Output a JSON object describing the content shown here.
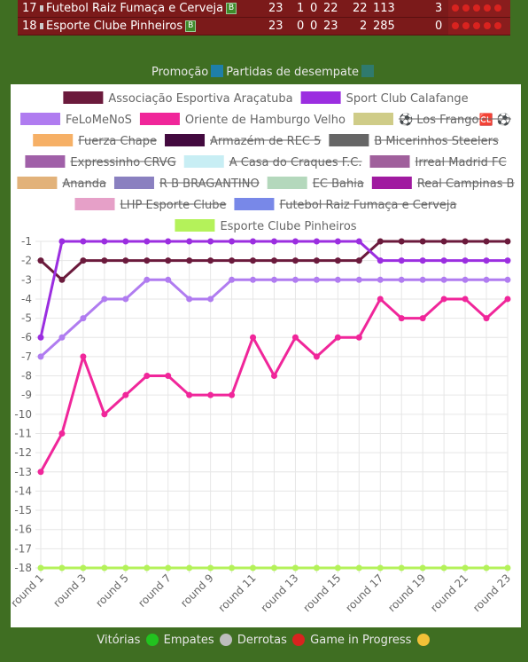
{
  "table_rows": [
    {
      "pos": "17",
      "name": "Futebol Raiz Fumaça e Cerveja",
      "badge": "B",
      "c1": "23",
      "c2": "1",
      "c3": "0",
      "c4": "22",
      "c5": "22",
      "c6": "113",
      "c7": "3"
    },
    {
      "pos": "18",
      "name": "Esporte Clube Pinheiros",
      "badge": "B",
      "c1": "23",
      "c2": "0",
      "c3": "0",
      "c4": "23",
      "c5": "2",
      "c6": "285",
      "c7": "0"
    }
  ],
  "top_legend": {
    "promocao": "Promoção",
    "desempate": "Partidas de desempate",
    "promocao_color": "#1e7fa8",
    "desempate_color": "#2f7a6e"
  },
  "bottom_legend": {
    "vitorias": "Vitórias",
    "empates": "Empates",
    "derrotas": "Derrotas",
    "in_progress": "Game in Progress",
    "colors": {
      "vitorias": "#22c21f",
      "empates": "#bdbdbd",
      "derrotas": "#d9231f",
      "in_progress": "#f2c038"
    }
  },
  "chart_data": {
    "type": "line",
    "x": [
      "round 1",
      "round 2",
      "round 3",
      "round 4",
      "round 5",
      "round 6",
      "round 7",
      "round 8",
      "round 9",
      "round 10",
      "round 11",
      "round 12",
      "round 13",
      "round 14",
      "round 15",
      "round 16",
      "round 17",
      "round 18",
      "round 19",
      "round 20",
      "round 21",
      "round 22",
      "round 23"
    ],
    "x_tick_labels": [
      "round 1",
      "round 3",
      "round 5",
      "round 7",
      "round 9",
      "round 11",
      "round 13",
      "round 15",
      "round 17",
      "round 19",
      "round 21",
      "round 23"
    ],
    "ylim": [
      -18,
      -1
    ],
    "y_ticks": [
      -1,
      -2,
      -3,
      -4,
      -5,
      -6,
      -7,
      -8,
      -9,
      -10,
      -11,
      -12,
      -13,
      -14,
      -15,
      -16,
      -17,
      -18
    ],
    "grid": true,
    "legend_position": "top",
    "legend": [
      {
        "name": "Associação Esportiva Araçatuba",
        "color": "#6b1a3c",
        "hidden": false
      },
      {
        "name": "Sport Club Calafange",
        "color": "#9b2ee0",
        "hidden": false
      },
      {
        "name": "FeLoMeNoS",
        "color": "#b07cf0",
        "hidden": false
      },
      {
        "name": "Oriente de Hamburgo Velho",
        "color": "#f0269a",
        "hidden": false
      },
      {
        "name": "⚽ Los Frango🆑 ⚽",
        "color": "#cfcc88",
        "hidden": true
      },
      {
        "name": "Fuerza Chape",
        "color": "#f6b066",
        "hidden": true
      },
      {
        "name": "Armazém de REC 5",
        "color": "#430a3f",
        "hidden": true
      },
      {
        "name": "B Micerinhos Steelers",
        "color": "#666666",
        "hidden": true
      },
      {
        "name": "Expressinho CRVG",
        "color": "#a060a8",
        "hidden": true
      },
      {
        "name": "A Casa do Craques F.C.",
        "color": "#c8eef4",
        "hidden": true
      },
      {
        "name": "Irreal Madrid FC",
        "color": "#a0609c",
        "hidden": true
      },
      {
        "name": "Ananda",
        "color": "#e2b27a",
        "hidden": true
      },
      {
        "name": "R B BRAGANTINO",
        "color": "#8a80c0",
        "hidden": true
      },
      {
        "name": "EC Bahia",
        "color": "#b4d8bc",
        "hidden": true
      },
      {
        "name": "Real Campinas B",
        "color": "#a01aa0",
        "hidden": true
      },
      {
        "name": "LHP Esporte Clube",
        "color": "#e6a0c8",
        "hidden": true
      },
      {
        "name": "Futebol Raiz Fumaça e Cerveja",
        "color": "#7888e8",
        "hidden": true
      },
      {
        "name": "Esporte Clube Pinheiros",
        "color": "#b4f25a",
        "hidden": false
      }
    ],
    "series": [
      {
        "name": "Associação Esportiva Araçatuba",
        "color": "#6b1a3c",
        "values": [
          -2,
          -3,
          -2,
          -2,
          -2,
          -2,
          -2,
          -2,
          -2,
          -2,
          -2,
          -2,
          -2,
          -2,
          -2,
          -2,
          -1,
          -1,
          -1,
          -1,
          -1,
          -1,
          -1
        ]
      },
      {
        "name": "Sport Club Calafange",
        "color": "#9b2ee0",
        "values": [
          -6,
          -1,
          -1,
          -1,
          -1,
          -1,
          -1,
          -1,
          -1,
          -1,
          -1,
          -1,
          -1,
          -1,
          -1,
          -1,
          -2,
          -2,
          -2,
          -2,
          -2,
          -2,
          -2
        ]
      },
      {
        "name": "FeLoMeNoS",
        "color": "#b07cf0",
        "values": [
          -7,
          -6,
          -5,
          -4,
          -4,
          -3,
          -3,
          -4,
          -4,
          -3,
          -3,
          -3,
          -3,
          -3,
          -3,
          -3,
          -3,
          -3,
          -3,
          -3,
          -3,
          -3,
          -3
        ]
      },
      {
        "name": "Oriente de Hamburgo Velho",
        "color": "#f0269a",
        "values": [
          -13,
          -11,
          -7,
          -10,
          -9,
          -8,
          -8,
          -9,
          -9,
          -9,
          -6,
          -8,
          -6,
          -7,
          -6,
          -6,
          -4,
          -5,
          -5,
          -4,
          -4,
          -5,
          -4
        ]
      },
      {
        "name": "Esporte Clube Pinheiros",
        "color": "#b4f25a",
        "values": [
          -18,
          -18,
          -18,
          -18,
          -18,
          -18,
          -18,
          -18,
          -18,
          -18,
          -18,
          -18,
          -18,
          -18,
          -18,
          -18,
          -18,
          -18,
          -18,
          -18,
          -18,
          -18,
          -18
        ]
      }
    ]
  }
}
